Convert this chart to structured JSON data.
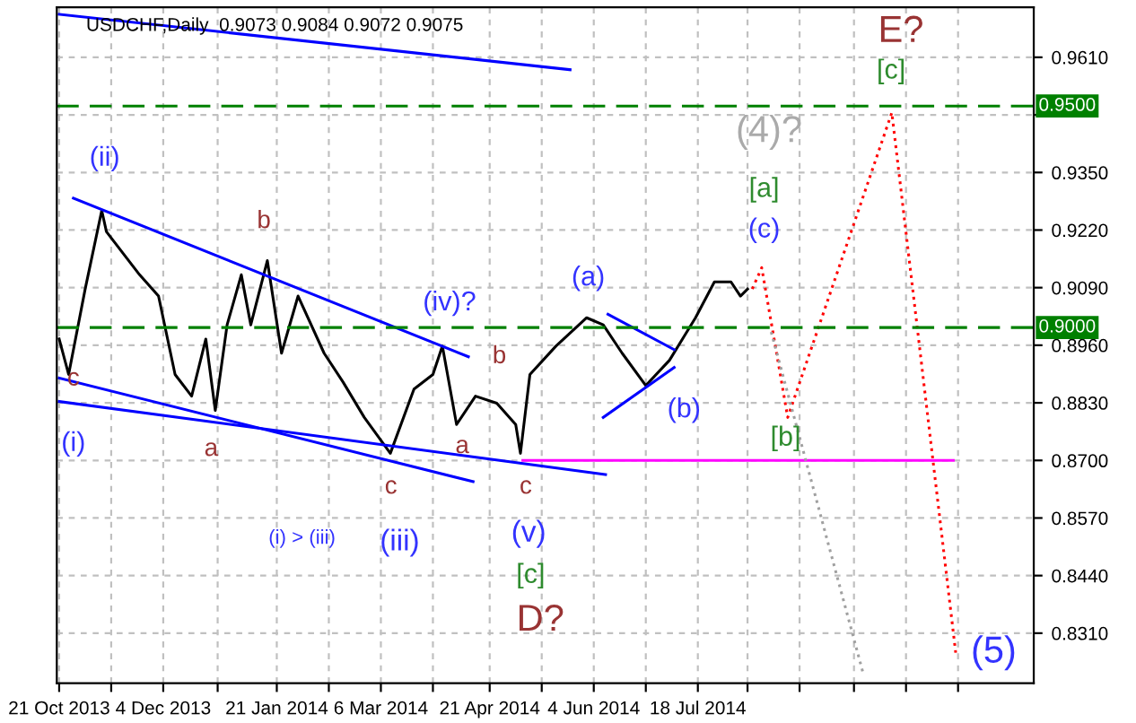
{
  "chart_data": {
    "type": "line",
    "title": "USDCHF,Daily  0.9073 0.9084 0.9072 0.9075",
    "xlim": [
      "2013-10-20",
      "2014-12-07"
    ],
    "ylim": [
      0.8197,
      0.9723
    ],
    "xticks": [
      {
        "value": "2013-10-21",
        "label": "21 Oct 2013"
      },
      {
        "value": "2013-11-12",
        "label": null
      },
      {
        "value": "2013-12-04",
        "label": "4 Dec 2013"
      },
      {
        "value": "2013-12-27",
        "label": null
      },
      {
        "value": "2014-01-21",
        "label": "21 Jan 2014"
      },
      {
        "value": "2014-02-12",
        "label": null
      },
      {
        "value": "2014-03-06",
        "label": "6 Mar 2014"
      },
      {
        "value": "2014-03-28",
        "label": null
      },
      {
        "value": "2014-04-21",
        "label": "21 Apr 2014"
      },
      {
        "value": "2014-05-13",
        "label": null
      },
      {
        "value": "2014-06-04",
        "label": "4 Jun 2014"
      },
      {
        "value": "2014-06-26",
        "label": null
      },
      {
        "value": "2014-07-18",
        "label": "18 Jul 2014"
      },
      {
        "value": "2014-08-08",
        "label": null
      },
      {
        "value": "2014-08-30",
        "label": null
      },
      {
        "value": "2014-09-22",
        "label": null
      },
      {
        "value": "2014-10-14",
        "label": null
      },
      {
        "value": "2014-11-05",
        "label": null
      }
    ],
    "yticks": [
      {
        "value": 0.961,
        "label": "0.9610"
      },
      {
        "value": 0.948,
        "label": null
      },
      {
        "value": 0.935,
        "label": "0.9350"
      },
      {
        "value": 0.922,
        "label": "0.9220"
      },
      {
        "value": 0.909,
        "label": "0.9090"
      },
      {
        "value": 0.896,
        "label": "0.8960"
      },
      {
        "value": 0.883,
        "label": "0.8830"
      },
      {
        "value": 0.87,
        "label": "0.8700"
      },
      {
        "value": 0.857,
        "label": "0.8570"
      },
      {
        "value": 0.844,
        "label": "0.8440"
      },
      {
        "value": 0.831,
        "label": "0.8310"
      }
    ],
    "grid": true,
    "series": [
      {
        "color": "#000000",
        "line_style": "solid",
        "x": [
          "2013-10-21",
          "2013-10-25",
          "2013-11-01",
          "2013-11-08",
          "2013-11-10",
          "2013-11-24",
          "2013-12-02",
          "2013-12-09",
          "2013-12-16",
          "2013-12-22",
          "2013-12-26",
          "2013-12-31",
          "2014-01-06",
          "2014-01-10",
          "2014-01-17",
          "2014-01-23",
          "2014-01-30",
          "2014-02-10",
          "2014-02-18",
          "2014-02-27",
          "2014-03-10",
          "2014-03-20",
          "2014-03-28",
          "2014-04-01",
          "2014-04-07",
          "2014-04-15",
          "2014-04-24",
          "2014-05-02",
          "2014-05-04",
          "2014-05-08",
          "2014-05-19",
          "2014-06-01",
          "2014-06-08",
          "2014-06-16",
          "2014-06-26",
          "2014-07-06",
          "2014-07-17",
          "2014-07-25",
          "2014-08-01",
          "2014-08-05",
          "2014-08-08"
        ],
        "values": [
          0.8974,
          0.8894,
          0.9087,
          0.9264,
          0.9216,
          0.9119,
          0.9071,
          0.8894,
          0.8845,
          0.8974,
          0.8813,
          0.9006,
          0.9119,
          0.9006,
          0.9151,
          0.8942,
          0.9071,
          0.8942,
          0.8877,
          0.8797,
          0.8716,
          0.8861,
          0.8894,
          0.8958,
          0.8781,
          0.8845,
          0.8829,
          0.8781,
          0.8716,
          0.8894,
          0.8958,
          0.9022,
          0.9006,
          0.8942,
          0.8869,
          0.8926,
          0.9022,
          0.9103,
          0.9103,
          0.9071,
          0.9087
        ]
      },
      {
        "color": "#0000ff",
        "line_style": "solid",
        "x": [
          "2013-10-21",
          "2014-05-25"
        ],
        "values": [
          0.9707,
          0.9582
        ]
      },
      {
        "color": "#0000ff",
        "line_style": "solid",
        "x": [
          "2013-10-27",
          "2014-04-12"
        ],
        "values": [
          0.9292,
          0.8934
        ]
      },
      {
        "color": "#0000ff",
        "line_style": "solid",
        "x": [
          "2013-10-21",
          "2014-04-14"
        ],
        "values": [
          0.8886,
          0.8652
        ]
      },
      {
        "color": "#0000ff",
        "line_style": "solid",
        "x": [
          "2013-10-21",
          "2014-06-09"
        ],
        "values": [
          0.8833,
          0.8668
        ]
      },
      {
        "color": "#0000ff",
        "line_style": "solid",
        "x": [
          "2014-06-10",
          "2014-07-08"
        ],
        "values": [
          0.903,
          0.895
        ]
      },
      {
        "color": "#0000ff",
        "line_style": "solid",
        "x": [
          "2014-06-08",
          "2014-07-08"
        ],
        "values": [
          0.8797,
          0.891
        ]
      },
      {
        "color": "#ff00ff",
        "line_style": "solid",
        "x": [
          "2014-05-05",
          "2014-11-03"
        ],
        "values": [
          0.87,
          0.87
        ]
      },
      {
        "color": "#ff0000",
        "line_style": "dotted",
        "x": [
          "2014-08-10",
          "2014-08-14",
          "2014-08-25",
          "2014-10-08",
          "2014-11-04"
        ],
        "values": [
          0.9087,
          0.9135,
          0.8797,
          0.9485,
          0.8266
        ]
      },
      {
        "color": "#a0a0a0",
        "line_style": "dotted",
        "x": [
          "2014-08-18",
          "2014-09-26"
        ],
        "values": [
          0.899,
          0.8217
        ]
      }
    ],
    "ref_lines": [
      {
        "axis": "y",
        "value": 0.95,
        "label": "0.9500",
        "color": "#008000",
        "line_style": "dashed"
      },
      {
        "axis": "y",
        "value": 0.9,
        "label": "0.9000",
        "color": "#008000",
        "line_style": "dashed"
      }
    ],
    "annotations": [
      "(ii)",
      "b",
      "c",
      "(i)",
      "a",
      "(iv)?",
      "b",
      "a",
      "c",
      "c",
      "(a)",
      "(b)",
      "(c)",
      "[a]",
      "(4)?",
      "E?",
      "[c]",
      "[b]",
      "(i) > (iii)",
      "(iii)",
      "(v)",
      "[c]",
      "D?",
      "(5)"
    ]
  }
}
